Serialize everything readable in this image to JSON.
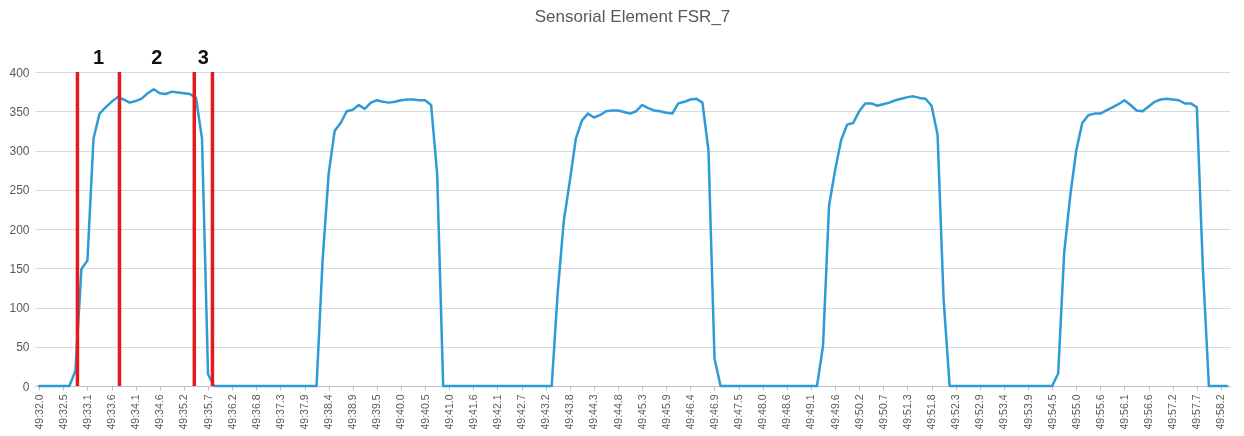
{
  "chart_data": {
    "type": "line",
    "title": "Sensorial Element FSR_7",
    "categories": [
      "49:32.0",
      null,
      null,
      null,
      "49:32.5",
      null,
      null,
      null,
      "49:33.1",
      null,
      null,
      null,
      "49:33.6",
      null,
      null,
      null,
      "49:34.1",
      null,
      null,
      null,
      "49:34.6",
      null,
      null,
      null,
      "49:35.2",
      null,
      null,
      null,
      "49:35.7",
      null,
      null,
      null,
      "49:36.2",
      null,
      null,
      null,
      "49:36.8",
      null,
      null,
      null,
      "49:37.3",
      null,
      null,
      null,
      "49:37.9",
      null,
      null,
      null,
      "49:38.4",
      null,
      null,
      null,
      "49:38.9",
      null,
      null,
      null,
      "49:39.5",
      null,
      null,
      null,
      "49:40.0",
      null,
      null,
      null,
      "49:40.5",
      null,
      null,
      null,
      "49:41.0",
      null,
      null,
      null,
      "49:41.6",
      null,
      null,
      null,
      "49:42.1",
      null,
      null,
      null,
      "49:42.7",
      null,
      null,
      null,
      "49:43.2",
      null,
      null,
      null,
      "49:43.8",
      null,
      null,
      null,
      "49:44.3",
      null,
      null,
      null,
      "49:44.8",
      null,
      null,
      null,
      "49:45.3",
      null,
      null,
      null,
      "49:45.9",
      null,
      null,
      null,
      "49:46.4",
      null,
      null,
      null,
      "49:46.9",
      null,
      null,
      null,
      "49:47.5",
      null,
      null,
      null,
      "49:48.0",
      null,
      null,
      null,
      "49:48.6",
      null,
      null,
      null,
      "49:49.1",
      null,
      null,
      null,
      "49:49.6",
      null,
      null,
      null,
      "49:50.2",
      null,
      null,
      null,
      "49:50.7",
      null,
      null,
      null,
      "49:51.3",
      null,
      null,
      null,
      "49:51.8",
      null,
      null,
      null,
      "49:52.3",
      null,
      null,
      null,
      "49:52.9",
      null,
      null,
      null,
      "49:53.4",
      null,
      null,
      null,
      "49:53.9",
      null,
      null,
      null,
      "49:54.5",
      null,
      null,
      null,
      "49:55.0",
      null,
      null,
      null,
      "49:55.6",
      null,
      null,
      null,
      "49:56.1",
      null,
      null,
      null,
      "49:56.6",
      null,
      null,
      null,
      "49:57.2",
      null,
      null,
      null,
      "49:57.7",
      null,
      null,
      null,
      "49:58.2",
      null
    ],
    "ylim": [
      0,
      400
    ],
    "yticks": [
      0,
      50,
      100,
      150,
      200,
      250,
      300,
      350,
      400
    ],
    "grid": "y",
    "series": [
      {
        "color": "#2e9bd6",
        "values": [
          0,
          0,
          0,
          0,
          0,
          0,
          19,
          149,
          160,
          315,
          347,
          355,
          362,
          368,
          365,
          361,
          363,
          366,
          373,
          378,
          373,
          372,
          375,
          374,
          373,
          372,
          367,
          315,
          15,
          0,
          0,
          0,
          0,
          0,
          0,
          0,
          0,
          0,
          0,
          0,
          0,
          0,
          0,
          0,
          0,
          0,
          0,
          160,
          270,
          325,
          335,
          350,
          352,
          358,
          353,
          361,
          364,
          362,
          361,
          362,
          364,
          365,
          365,
          364,
          364,
          358,
          270,
          0,
          0,
          0,
          0,
          0,
          0,
          0,
          0,
          0,
          0,
          0,
          0,
          0,
          0,
          0,
          0,
          0,
          0,
          0,
          120,
          210,
          261,
          315,
          338,
          347,
          342,
          345,
          350,
          351,
          351,
          349,
          347,
          350,
          358,
          354,
          351,
          350,
          348,
          347,
          360,
          362,
          365,
          366,
          361,
          300,
          35,
          0,
          0,
          0,
          0,
          0,
          0,
          0,
          0,
          0,
          0,
          0,
          0,
          0,
          0,
          0,
          0,
          0,
          51,
          230,
          275,
          313,
          333,
          335,
          350,
          360,
          360,
          357,
          359,
          361,
          364,
          366,
          368,
          369,
          367,
          366,
          357,
          320,
          110,
          0,
          0,
          0,
          0,
          0,
          0,
          0,
          0,
          0,
          0,
          0,
          0,
          0,
          0,
          0,
          0,
          0,
          0,
          16,
          170,
          242,
          300,
          335,
          345,
          347,
          347,
          351,
          355,
          359,
          364,
          358,
          351,
          350,
          356,
          362,
          365,
          366,
          365,
          364,
          360,
          360,
          355,
          150,
          0,
          0,
          0,
          0
        ]
      }
    ],
    "annotations": [
      "1",
      "2",
      "3"
    ]
  }
}
